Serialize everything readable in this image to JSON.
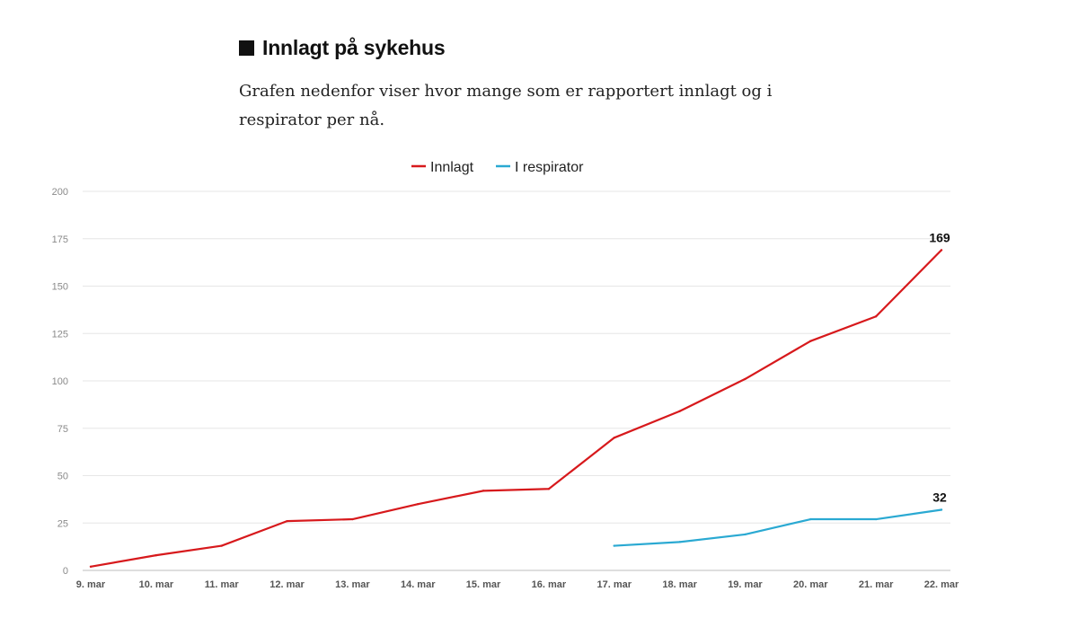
{
  "header": {
    "title": "Innlagt på sykehus",
    "intro": "Grafen nedenfor viser hvor mange som er rapportert innlagt og i respirator per nå."
  },
  "colors": {
    "innlagt": "#d7191c",
    "respirator": "#2aa9d2",
    "grid": "#e6e6e6",
    "axis": "#bdbdbd"
  },
  "chart_data": {
    "type": "line",
    "title": "",
    "xlabel": "",
    "ylabel": "",
    "categories": [
      "9. mar",
      "10. mar",
      "11. mar",
      "12. mar",
      "13. mar",
      "14. mar",
      "15. mar",
      "16. mar",
      "17. mar",
      "18. mar",
      "19. mar",
      "20. mar",
      "21. mar",
      "22. mar"
    ],
    "yticks": [
      0,
      25,
      50,
      75,
      100,
      125,
      150,
      175,
      200
    ],
    "ylim": [
      0,
      200
    ],
    "grid": true,
    "legend": "top-center",
    "series": [
      {
        "name": "Innlagt",
        "color": "#d7191c",
        "values": [
          2,
          8,
          13,
          26,
          27,
          35,
          42,
          43,
          70,
          84,
          101,
          121,
          134,
          169
        ],
        "end_label": "169"
      },
      {
        "name": "I respirator",
        "color": "#2aa9d2",
        "values": [
          null,
          null,
          null,
          null,
          null,
          null,
          null,
          null,
          13,
          15,
          19,
          27,
          27,
          32
        ],
        "end_label": "32"
      }
    ]
  }
}
